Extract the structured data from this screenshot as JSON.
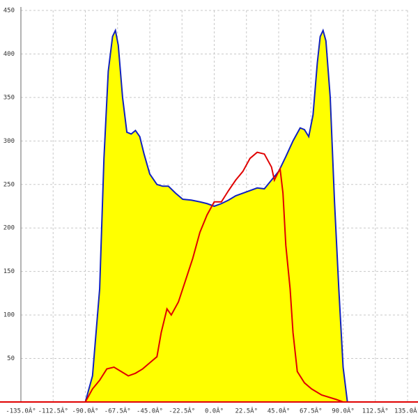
{
  "chart_data": {
    "type": "area-line",
    "xlim": [
      -135,
      135
    ],
    "ylim": [
      0,
      450
    ],
    "xticks": [
      {
        "value": -135,
        "label": "-135.0Â°"
      },
      {
        "value": -112.5,
        "label": "-112.5Â°"
      },
      {
        "value": -90,
        "label": "-90.0Â°"
      },
      {
        "value": -67.5,
        "label": "-67.5Â°"
      },
      {
        "value": -45,
        "label": "-45.0Â°"
      },
      {
        "value": -22.5,
        "label": "-22.5Â°"
      },
      {
        "value": 0,
        "label": "0.0Â°"
      },
      {
        "value": 22.5,
        "label": "22.5Â°"
      },
      {
        "value": 45,
        "label": "45.0Â°"
      },
      {
        "value": 67.5,
        "label": "67.5Â°"
      },
      {
        "value": 90,
        "label": "90.0Â°"
      },
      {
        "value": 112.5,
        "label": "112.5Â°"
      },
      {
        "value": 135,
        "label": "135.0Â°"
      }
    ],
    "yticks": [
      50,
      100,
      150,
      200,
      250,
      300,
      350,
      400,
      450
    ],
    "grid": true,
    "axis_color": "#e00000",
    "series": [
      {
        "color": "#1020c0",
        "fill": "#ffff00",
        "x": [
          -90,
          -85,
          -80,
          -77,
          -74,
          -71,
          -69,
          -67,
          -64,
          -61,
          -58,
          -55,
          -52,
          -49,
          -45,
          -40,
          -36,
          -32,
          -27,
          -22,
          -16,
          -10,
          -5,
          0,
          5,
          10,
          15,
          20,
          25,
          30,
          35,
          40,
          45,
          50,
          55,
          60,
          63,
          66,
          69,
          72,
          74,
          76,
          78,
          81,
          84,
          87,
          90,
          93
        ],
        "values": [
          0,
          30,
          130,
          280,
          380,
          420,
          427,
          410,
          350,
          310,
          308,
          312,
          305,
          285,
          262,
          250,
          248,
          248,
          240,
          233,
          232,
          230,
          228,
          225,
          228,
          232,
          237,
          240,
          243,
          246,
          245,
          255,
          265,
          282,
          300,
          315,
          313,
          305,
          330,
          390,
          420,
          427,
          415,
          350,
          230,
          130,
          40,
          0
        ]
      },
      {
        "color": "#e00000",
        "x": [
          -90,
          -85,
          -80,
          -75,
          -70,
          -65,
          -60,
          -55,
          -50,
          -45,
          -40,
          -37,
          -33,
          -30,
          -25,
          -20,
          -15,
          -10,
          -5,
          0,
          5,
          10,
          15,
          20,
          25,
          30,
          35,
          40,
          42,
          45,
          46,
          48,
          50,
          53,
          55,
          58,
          63,
          68,
          75,
          85,
          90
        ],
        "values": [
          0,
          15,
          25,
          38,
          40,
          35,
          30,
          33,
          38,
          45,
          52,
          80,
          107,
          100,
          115,
          140,
          165,
          195,
          215,
          230,
          230,
          243,
          255,
          265,
          280,
          287,
          285,
          270,
          255,
          265,
          268,
          240,
          180,
          130,
          80,
          35,
          22,
          15,
          8,
          3,
          0
        ]
      }
    ]
  }
}
